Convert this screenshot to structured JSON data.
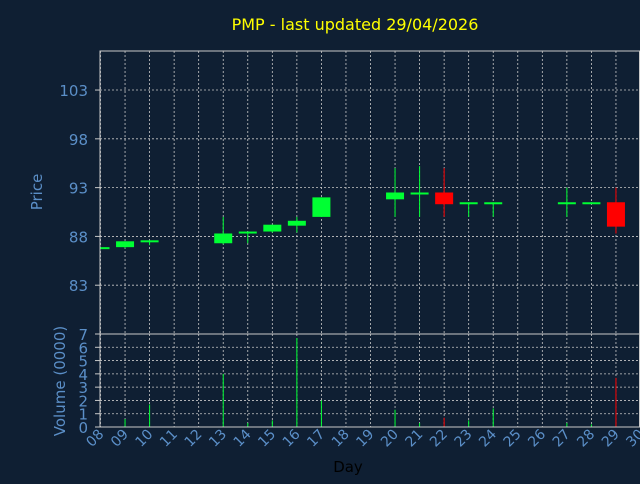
{
  "chart_data": {
    "type": "candlestick",
    "title": "PMP - last updated 29/04/2026",
    "xlabel": "Day",
    "price_panel": {
      "ylabel": "Price",
      "ylim": [
        78,
        107
      ],
      "yticks": [
        83,
        88,
        93,
        98,
        103
      ],
      "grid": true
    },
    "volume_panel": {
      "ylabel": "Volume (0000)",
      "ylim": [
        0,
        7
      ],
      "yticks": [
        0,
        1,
        2,
        3,
        4,
        5,
        6,
        7
      ],
      "grid": true
    },
    "x_ticks": [
      "08",
      "09",
      "10",
      "11",
      "12",
      "13",
      "14",
      "15",
      "16",
      "17",
      "18",
      "19",
      "20",
      "21",
      "22",
      "23",
      "24",
      "25",
      "26",
      "27",
      "28",
      "29",
      "30"
    ],
    "xlim": [
      8,
      30
    ],
    "candles": [
      {
        "day": 8,
        "open": 86.9,
        "high": 86.9,
        "low": 86.9,
        "close": 86.9,
        "volume": 0.0
      },
      {
        "day": 9,
        "open": 86.9,
        "high": 87.5,
        "low": 86.8,
        "close": 87.5,
        "volume": 0.6
      },
      {
        "day": 10,
        "open": 87.4,
        "high": 87.6,
        "low": 87.1,
        "close": 87.6,
        "volume": 1.7
      },
      {
        "day": 13,
        "open": 87.3,
        "high": 90.0,
        "low": 87.2,
        "close": 88.3,
        "volume": 4.0
      },
      {
        "day": 14,
        "open": 88.3,
        "high": 88.5,
        "low": 87.3,
        "close": 88.5,
        "volume": 0.3
      },
      {
        "day": 15,
        "open": 88.5,
        "high": 89.2,
        "low": 88.4,
        "close": 89.2,
        "volume": 0.5
      },
      {
        "day": 16,
        "open": 89.1,
        "high": 90.0,
        "low": 88.4,
        "close": 89.6,
        "volume": 6.7
      },
      {
        "day": 17,
        "open": 90.0,
        "high": 92.0,
        "low": 90.0,
        "close": 92.0,
        "volume": 2.0
      },
      {
        "day": 20,
        "open": 91.8,
        "high": 95.0,
        "low": 90.0,
        "close": 92.5,
        "volume": 1.3
      },
      {
        "day": 21,
        "open": 92.3,
        "high": 95.2,
        "low": 90.0,
        "close": 92.5,
        "volume": 0.3
      },
      {
        "day": 22,
        "open": 92.5,
        "high": 95.0,
        "low": 90.0,
        "close": 91.3,
        "volume": 0.7
      },
      {
        "day": 23,
        "open": 91.3,
        "high": 91.5,
        "low": 90.0,
        "close": 91.5,
        "volume": 0.5
      },
      {
        "day": 24,
        "open": 91.4,
        "high": 91.5,
        "low": 90.0,
        "close": 91.5,
        "volume": 1.4
      },
      {
        "day": 27,
        "open": 91.4,
        "high": 93.0,
        "low": 90.0,
        "close": 91.5,
        "volume": 0.3
      },
      {
        "day": 28,
        "open": 91.4,
        "high": 91.5,
        "low": 91.4,
        "close": 91.5,
        "volume": 0.2
      },
      {
        "day": 29,
        "open": 91.5,
        "high": 93.0,
        "low": 88.3,
        "close": 89.0,
        "volume": 3.7
      }
    ]
  },
  "colors": {
    "background": "#0f1f33",
    "title": "#ffff00",
    "axis_text": "#5b8fc8",
    "grid": "#c8c8c8",
    "frame": "#c8c8c8",
    "up": "#00ff33",
    "down": "#ff0000"
  }
}
